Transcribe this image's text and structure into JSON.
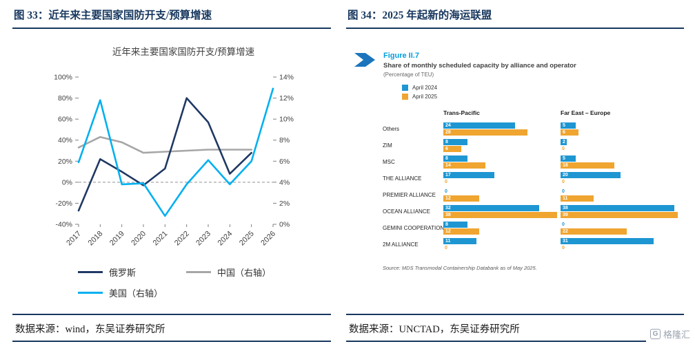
{
  "accent_color": "#17375E",
  "left_panel": {
    "header": "图 33：近年来主要国家国防开支/预算增速",
    "source": "数据来源：wind，东吴证券研究所"
  },
  "right_panel": {
    "header": "图 34：2025 年起新的海运联盟",
    "source": "数据来源：UNCTAD，东吴证券研究所"
  },
  "watermark": "格隆汇",
  "chart_data": [
    {
      "type": "line",
      "title": "近年来主要国家国防开支/预算增速",
      "x": [
        "2017",
        "2018",
        "2019",
        "2020",
        "2021",
        "2022",
        "2023",
        "2024",
        "2025",
        "2026"
      ],
      "left_axis": {
        "min": -40,
        "max": 100,
        "tick_labels": [
          "100%",
          "80%",
          "60%",
          "40%",
          "20%",
          "0%",
          "-20%",
          "-40%"
        ]
      },
      "right_axis": {
        "min": 0,
        "max": 14,
        "tick_labels": [
          "14%",
          "12%",
          "10%",
          "8%",
          "6%",
          "4%",
          "2%",
          "0%"
        ]
      },
      "zero_line": true,
      "legend_position": "bottom",
      "series": [
        {
          "name": "俄罗斯",
          "axis": "left",
          "color": "#1F3864",
          "values": [
            -27,
            22,
            10,
            -3,
            13,
            80,
            57,
            8,
            28,
            null
          ]
        },
        {
          "name": "中国（右轴）",
          "axis": "right",
          "color": "#A6A6A6",
          "values": [
            7.3,
            8.3,
            7.8,
            6.8,
            6.9,
            7.0,
            7.1,
            7.1,
            7.1,
            null
          ]
        },
        {
          "name": "美国（右轴）",
          "axis": "right",
          "color": "#00B0F0",
          "values": [
            5.9,
            11.8,
            3.8,
            3.9,
            0.8,
            3.8,
            6.1,
            3.8,
            6.0,
            12.9
          ]
        }
      ]
    },
    {
      "type": "bar",
      "figure_label": "Figure II.7",
      "title": "Share of monthly scheduled capacity by alliance and operator",
      "subtitle": "(Percentage of TEU)",
      "legend": [
        {
          "label": "April 2024",
          "color": "#1E96D2"
        },
        {
          "label": "April 2025",
          "color": "#F0A530"
        }
      ],
      "groups": [
        "Trans-Pacific",
        "Far East – Europe"
      ],
      "categories": [
        "Others",
        "ZIM",
        "MSC",
        "THE ALLIANCE",
        "PREMIER ALLIANCE",
        "OCEAN ALLIANCE",
        "GEMINI COOPERATION",
        "2M ALLIANCE"
      ],
      "series": {
        "trans_pacific": {
          "april_2024": [
            24,
            8,
            8,
            17,
            0,
            32,
            8,
            11
          ],
          "april_2025": [
            28,
            6,
            14,
            0,
            12,
            38,
            12,
            0
          ]
        },
        "far_east_europe": {
          "april_2024": [
            5,
            2,
            5,
            20,
            0,
            38,
            0,
            31
          ],
          "april_2025": [
            6,
            0,
            18,
            0,
            11,
            39,
            22,
            0
          ]
        }
      },
      "source": "Source: MDS Transmodal Containership Databank as of May 2025."
    }
  ]
}
